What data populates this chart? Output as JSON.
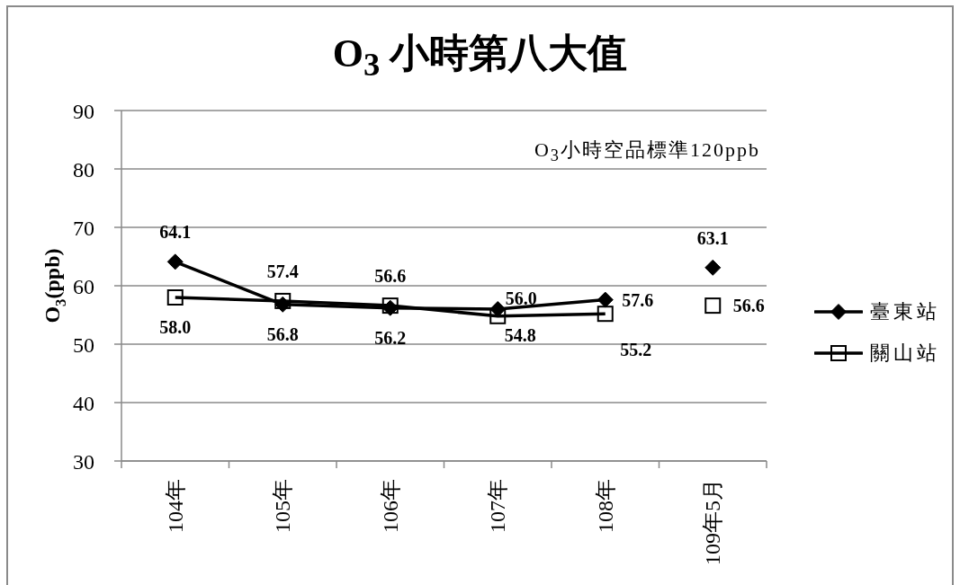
{
  "chart_data": {
    "type": "line",
    "title": "O$_{3}$ 小時第八大值",
    "ylabel": "O$_{3}$(ppb)",
    "annotations": [
      "O$_{3}$小時空品標準120ppb"
    ],
    "categories": [
      "104年",
      "105年",
      "106年",
      "107年",
      "108年",
      "109年5月"
    ],
    "series": [
      {
        "name": "臺東站",
        "color": "#000000",
        "marker": "diamond",
        "values": [
          64.1,
          56.8,
          56.2,
          56.0,
          57.6,
          null
        ],
        "value_labels": [
          "64.1",
          "56.8",
          "56.2",
          "56.0",
          "57.6",
          null
        ]
      },
      {
        "name": "關山站",
        "color": "#000000",
        "marker": "square",
        "values": [
          58.0,
          57.4,
          56.6,
          54.8,
          55.2,
          null
        ],
        "value_labels": [
          "58.0",
          "57.4",
          "56.6",
          "54.8",
          "55.2",
          null
        ]
      },
      {
        "type": "scatter",
        "color": "#000000",
        "marker": "diamond",
        "values": [
          null,
          null,
          null,
          null,
          null,
          63.1
        ],
        "value_labels": [
          null,
          null,
          null,
          null,
          null,
          "63.1"
        ]
      },
      {
        "type": "scatter",
        "color": "#000000",
        "marker": "square",
        "values": [
          null,
          null,
          null,
          null,
          null,
          56.6
        ],
        "value_labels": [
          null,
          null,
          null,
          null,
          null,
          "56.6"
        ]
      }
    ],
    "ylim": [
      30,
      90
    ],
    "yticks": [
      30,
      40,
      50,
      60,
      70,
      80,
      90
    ],
    "grid": "y",
    "legend": "right"
  }
}
